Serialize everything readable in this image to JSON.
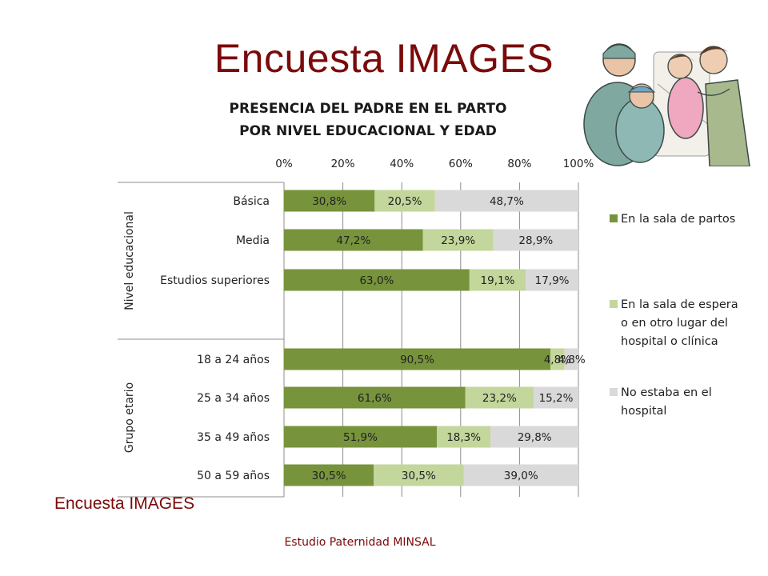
{
  "slide": {
    "title": "Encuesta IMAGES",
    "footer_left": "Encuesta IMAGES",
    "footer_center": "Estudio Paternidad MINSAL"
  },
  "chart_data": {
    "type": "bar",
    "orientation": "horizontal",
    "stacked": true,
    "title": "PRESENCIA DEL PADRE EN EL PARTO POR NIVEL EDUCACIONAL Y EDAD",
    "title_lines": [
      "PRESENCIA DEL PADRE EN EL PARTO",
      "POR NIVEL EDUCACIONAL Y EDAD"
    ],
    "x_axis": {
      "ticks": [
        "0%",
        "20%",
        "40%",
        "60%",
        "80%",
        "100%"
      ],
      "range": [
        0,
        100
      ],
      "position": "top"
    },
    "groups": [
      {
        "label": "Nivel educacional",
        "categories": [
          "Básica",
          "Media",
          "Estudios superiores"
        ]
      },
      {
        "label": "Grupo etario",
        "categories": [
          "18 a 24 años",
          "25 a 34 años",
          "35 a 49 años",
          "50 a 59 años"
        ]
      }
    ],
    "categories": [
      "Básica",
      "Media",
      "Estudios superiores",
      "18 a 24 años",
      "25 a 34 años",
      "35 a 49 años",
      "50 a 59 años"
    ],
    "series": [
      {
        "name": "En la sala de partos",
        "color": "#77933c",
        "values": [
          30.8,
          47.2,
          63.0,
          90.5,
          61.6,
          51.9,
          30.5
        ],
        "labels": [
          "30,8%",
          "47,2%",
          "63,0%",
          "90,5%",
          "61,6%",
          "51,9%",
          "30,5%"
        ]
      },
      {
        "name": "En la sala de espera o en otro lugar del hospital o clínica",
        "color": "#c3d69b",
        "values": [
          20.5,
          23.9,
          19.1,
          4.8,
          23.2,
          18.3,
          30.5
        ],
        "labels": [
          "20,5%",
          "23,9%",
          "19,1%",
          "4,8%",
          "23,2%",
          "18,3%",
          "30,5%"
        ]
      },
      {
        "name": "No estaba  en el hospital",
        "color": "#d9d9d9",
        "values": [
          48.7,
          28.9,
          17.9,
          4.8,
          15.2,
          29.8,
          39.0
        ],
        "labels": [
          "48,7%",
          "28,9%",
          "17,9%",
          "4,8%",
          "15,2%",
          "29,8%",
          "39,0%"
        ]
      }
    ],
    "legend": {
      "placement": "right",
      "items": [
        {
          "label": "En la sala de partos",
          "color": "#77933c"
        },
        {
          "label": "En la sala de espera o en otro lugar del hospital o clínica",
          "color": "#c3d69b"
        },
        {
          "label": "No estaba  en el hospital",
          "color": "#d9d9d9"
        }
      ]
    },
    "grid": true,
    "illustration": "cartoon of a father, mother and nurse during childbirth"
  }
}
